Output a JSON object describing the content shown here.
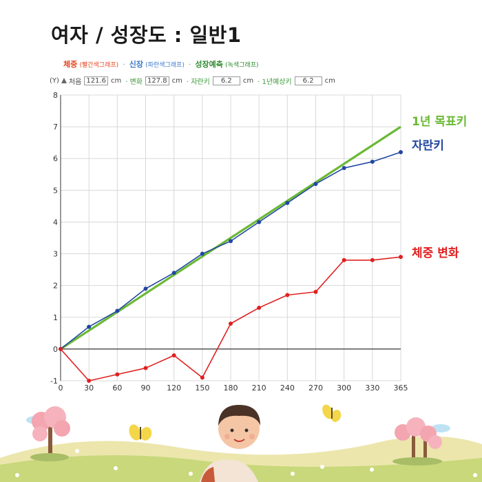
{
  "header": {
    "title": "여자 / 성장도 : 일반1",
    "legend": [
      {
        "main": "체중",
        "sub": "(빨간색그래프)",
        "color": "#e8431c"
      },
      {
        "main": "신장",
        "sub": "(파란색그래프)",
        "color": "#3a78c9"
      },
      {
        "main": "성장예측",
        "sub": "(녹색그래프)",
        "color": "#2e8b2e"
      }
    ],
    "legend_sep": "·"
  },
  "info": {
    "y_axis": "(Y)",
    "first_label": "처음",
    "first_value": "121.6",
    "first_unit": "cm",
    "change_label": "· 변화",
    "change_value": "127.8",
    "change_unit": "cm",
    "grown_label": "· 자란키",
    "grown_value": "6.2",
    "grown_unit": "cm",
    "predict_label": "· 1년예상키",
    "predict_value": "6.2",
    "predict_unit": "cm"
  },
  "chart_data": {
    "type": "line",
    "x": [
      0,
      30,
      60,
      90,
      120,
      150,
      180,
      210,
      240,
      270,
      300,
      330,
      365
    ],
    "xticks": [
      "0",
      "30",
      "60",
      "90",
      "120",
      "150",
      "180",
      "210",
      "240",
      "270",
      "300",
      "330",
      "365"
    ],
    "ylim": [
      -1,
      8
    ],
    "yticks": [
      "-1",
      "0",
      "1",
      "2",
      "3",
      "4",
      "5",
      "6",
      "7",
      "8"
    ],
    "grid": true,
    "series": [
      {
        "name": "1년 목표키",
        "color": "#6ab934",
        "x": [
          0,
          365
        ],
        "values": [
          0,
          7.0
        ],
        "markers": false
      },
      {
        "name": "자란키",
        "color": "#2147a0",
        "values": [
          0,
          0.7,
          1.2,
          1.9,
          2.4,
          3.0,
          3.4,
          4.0,
          4.6,
          5.2,
          5.7,
          5.9,
          6.2
        ],
        "markers": true
      },
      {
        "name": "체중 변화",
        "color": "#e02020",
        "values": [
          0,
          -1.0,
          -0.8,
          -0.6,
          -0.2,
          -0.9,
          0.8,
          1.3,
          1.7,
          1.8,
          2.8,
          2.8,
          2.9
        ],
        "markers": true
      }
    ]
  },
  "scene": {
    "colors": {
      "sky": "#ffffff",
      "hill_back": "#e9e3a8",
      "hill_front": "#c9d97a",
      "tree_blossom": "#f3a5b0",
      "tree_trunk": "#8a5a3c",
      "butterfly": "#f4d64a"
    }
  }
}
